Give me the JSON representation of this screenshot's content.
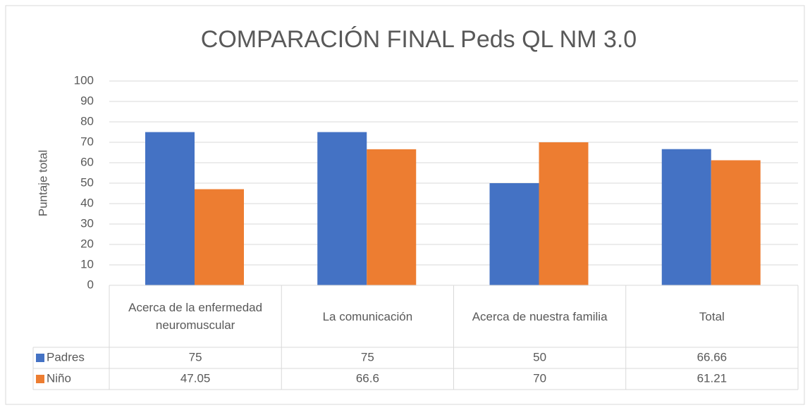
{
  "chart_data": {
    "type": "bar",
    "title": "COMPARACIÓN FINAL Peds QL NM 3.0",
    "y_label": "Puntaje total",
    "categories": [
      "Acerca de la enfermedad neuromuscular",
      "La comunicación",
      "Acerca de nuestra familia",
      "Total"
    ],
    "series": [
      {
        "name": "Padres",
        "color": "#4472c4",
        "values": [
          75,
          75,
          50,
          66.66
        ]
      },
      {
        "name": "Niño",
        "color": "#ed7d31",
        "values": [
          47.05,
          66.6,
          70,
          61.21
        ]
      }
    ],
    "ylim": [
      0,
      100
    ],
    "yticks": [
      0,
      10,
      20,
      30,
      40,
      50,
      60,
      70,
      80,
      90,
      100
    ],
    "grid": true,
    "data_table": true
  }
}
